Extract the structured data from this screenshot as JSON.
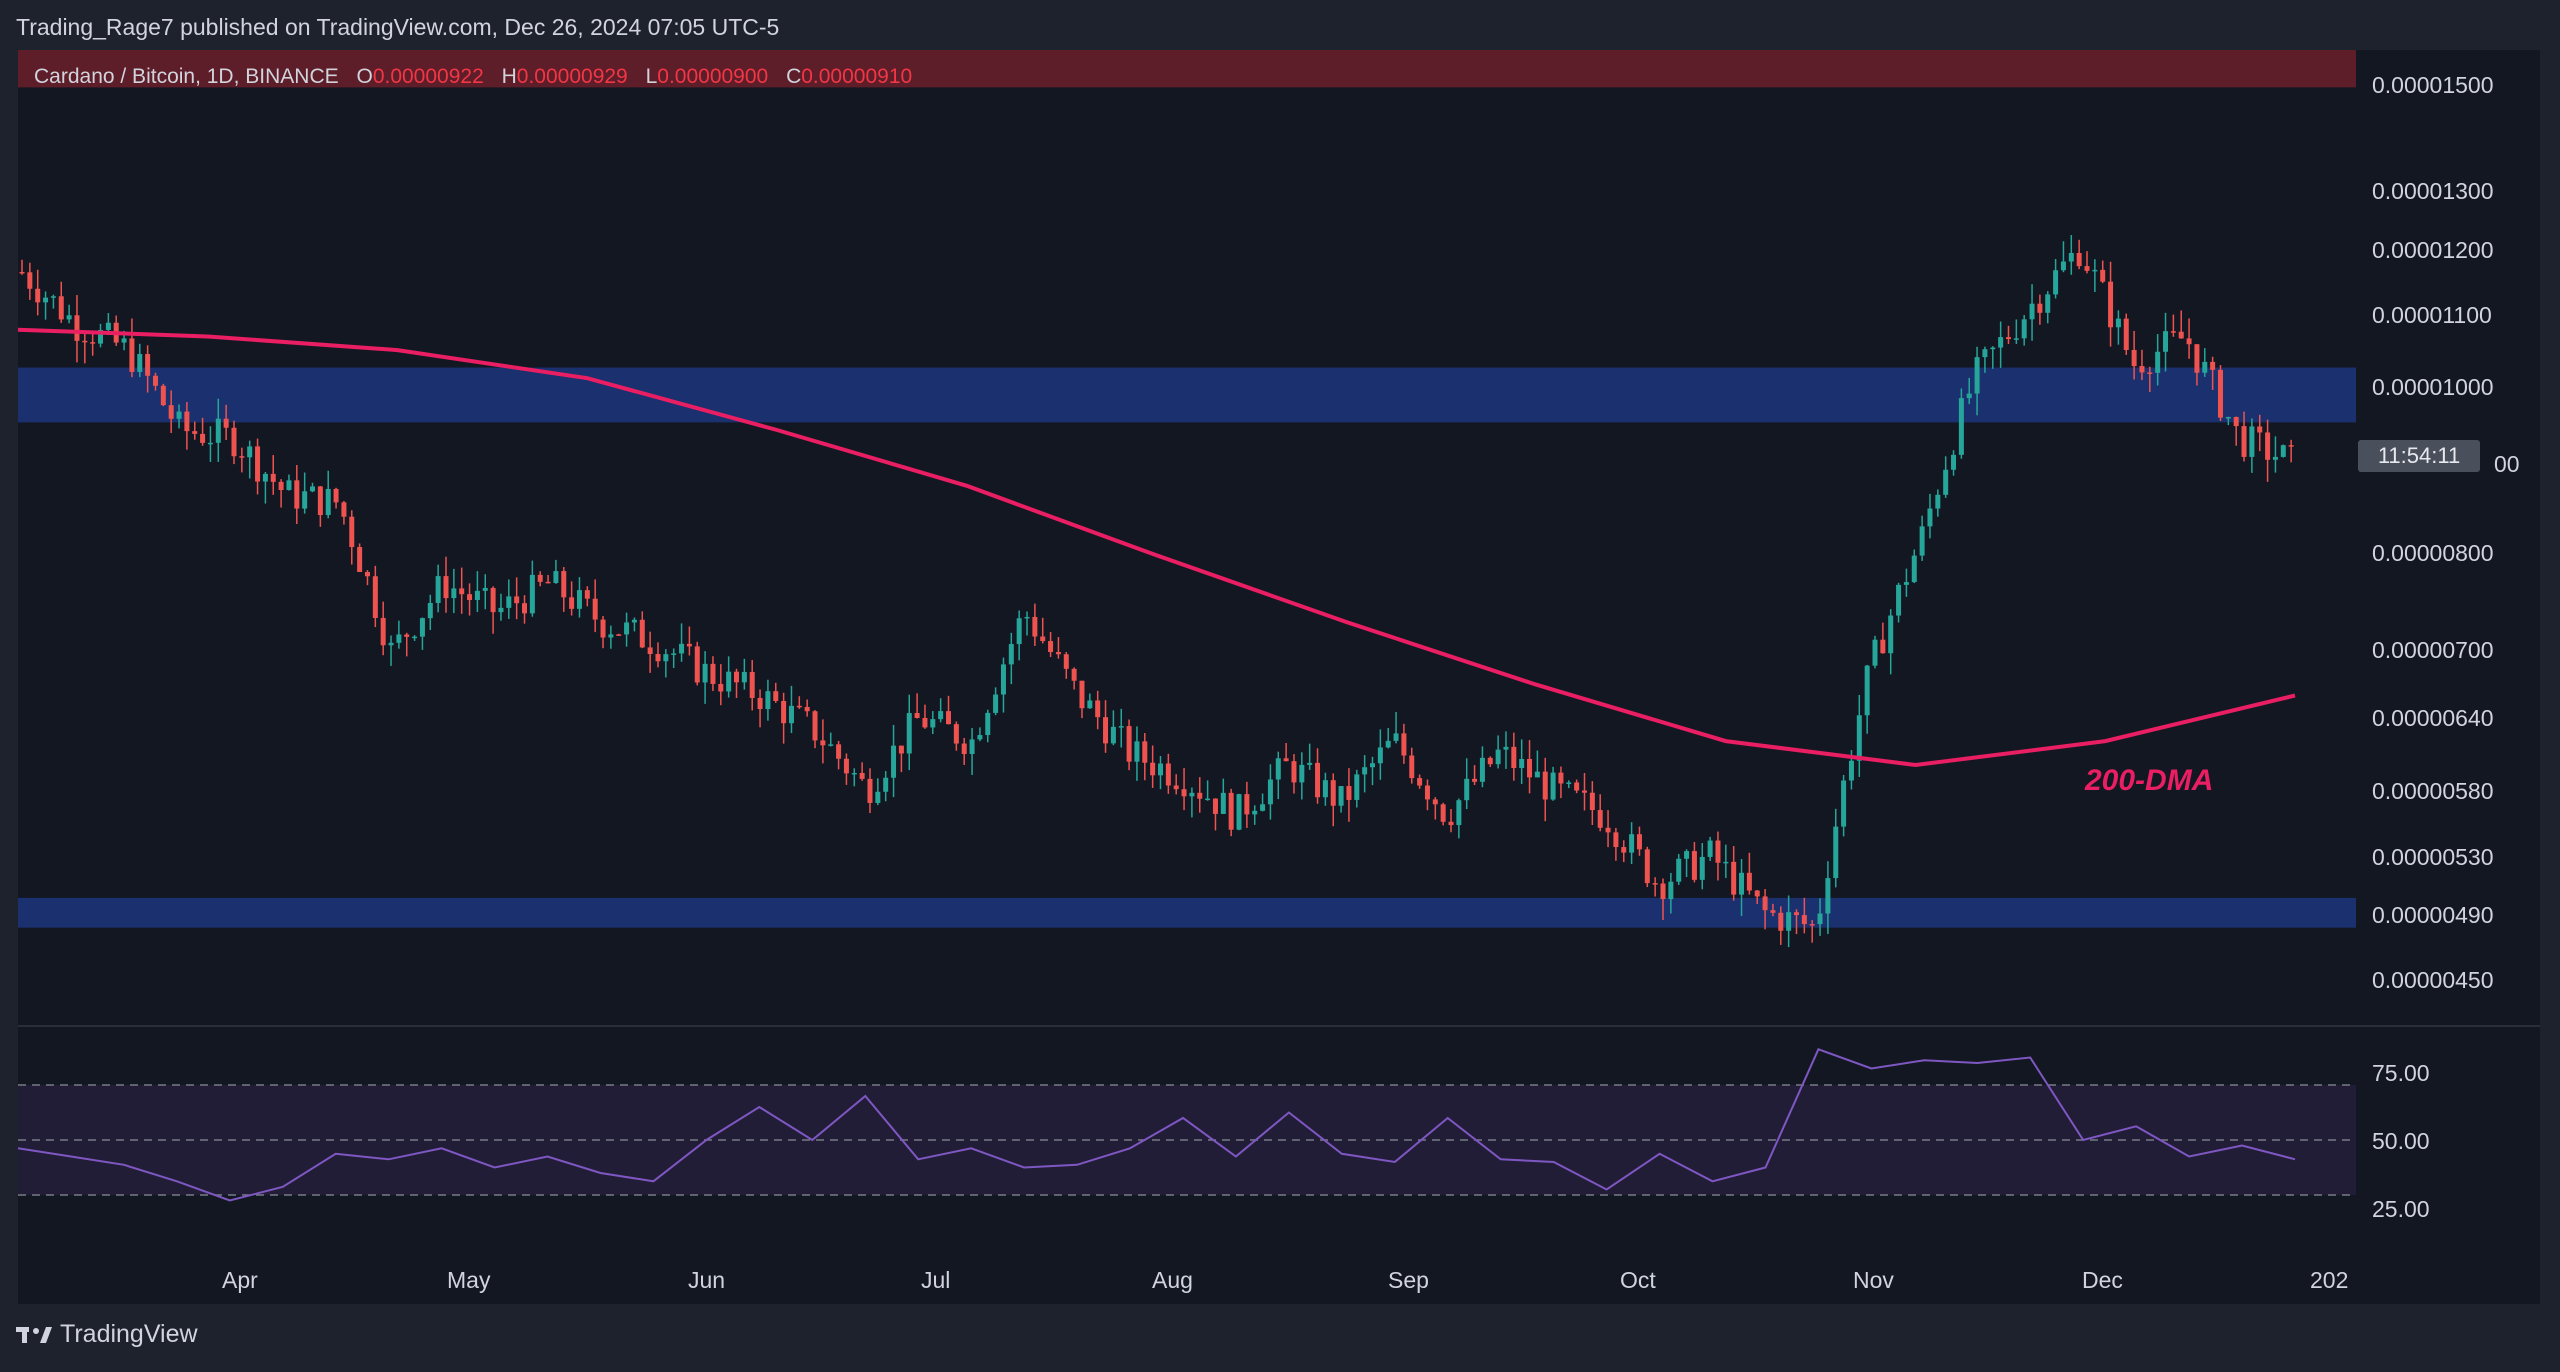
{
  "header": {
    "publish_line": "Trading_Rage7 published on TradingView.com, Dec 26, 2024 07:05 UTC-5"
  },
  "legend": {
    "symbol": "Cardano / Bitcoin, 1D, BINANCE",
    "open_label": "O",
    "open_value": "0.00000922",
    "high_label": "H",
    "high_value": "0.00000929",
    "low_label": "L",
    "low_value": "0.00000900",
    "close_label": "C",
    "close_value": "0.00000910"
  },
  "price_axis": [
    "0.00001500",
    "0.00001300",
    "0.00001200",
    "0.00001100",
    "0.00001000",
    "00",
    "0.00000800",
    "0.00000700",
    "0.00000640",
    "0.00000580",
    "0.00000530",
    "0.00000490",
    "0.00000450"
  ],
  "countdown": "11:54:11",
  "rsi_axis": [
    "75.00",
    "50.00",
    "25.00"
  ],
  "time_axis": [
    "Apr",
    "May",
    "Jun",
    "Jul",
    "Aug",
    "Sep",
    "Oct",
    "Nov",
    "Dec",
    "202"
  ],
  "annotation_ma": "200-DMA",
  "footer": {
    "brand": "TradingView"
  },
  "colors": {
    "up": "#26a69a",
    "down": "#ef5350",
    "ma": "#e91e63",
    "zone": "#1e3a8a",
    "resistance_band": "#6b1f2a",
    "rsi_line": "#7e57c2"
  },
  "chart_data": {
    "type": "candlestick",
    "price_scale": "log",
    "ylim": [
      4.2e-06,
      1.6e-05
    ],
    "support_zone": [
      4.8e-06,
      5e-06
    ],
    "resistance_zone": [
      9.6e-06,
      1.035e-05
    ],
    "top_band": [
      1.52e-05,
      1.6e-05
    ],
    "ohlc_path": [
      {
        "t": "Mar 2024",
        "close": 1.18e-05
      },
      {
        "t": "Mar 2024",
        "close": 1.1e-05
      },
      {
        "t": "Mar 2024",
        "close": 1.06e-05
      },
      {
        "t": "Mar 2024",
        "close": 9.5e-06
      },
      {
        "t": "Apr 2024",
        "close": 9.4e-06
      },
      {
        "t": "Apr 2024",
        "close": 8.7e-06
      },
      {
        "t": "Apr 2024",
        "close": 8.6e-06
      },
      {
        "t": "Apr 2024",
        "close": 7e-06
      },
      {
        "t": "Apr 2024",
        "close": 7.7e-06
      },
      {
        "t": "May 2024",
        "close": 7.4e-06
      },
      {
        "t": "May 2024",
        "close": 7.7e-06
      },
      {
        "t": "May 2024",
        "close": 7.3e-06
      },
      {
        "t": "May 2024",
        "close": 7.1e-06
      },
      {
        "t": "Jun 2024",
        "close": 6.8e-06
      },
      {
        "t": "Jun 2024",
        "close": 6.6e-06
      },
      {
        "t": "Jun 2024",
        "close": 6.3e-06
      },
      {
        "t": "Jun 2024",
        "close": 5.8e-06
      },
      {
        "t": "Jul 2024",
        "close": 6.4e-06
      },
      {
        "t": "Jul 2024",
        "close": 6.2e-06
      },
      {
        "t": "Jul 2024",
        "close": 7.4e-06
      },
      {
        "t": "Jul 2024",
        "close": 6.6e-06
      },
      {
        "t": "Aug 2024",
        "close": 6.1e-06
      },
      {
        "t": "Aug 2024",
        "close": 5.9e-06
      },
      {
        "t": "Aug 2024",
        "close": 5.6e-06
      },
      {
        "t": "Aug 2024",
        "close": 6e-06
      },
      {
        "t": "Sep 2024",
        "close": 5.7e-06
      },
      {
        "t": "Sep 2024",
        "close": 6.2e-06
      },
      {
        "t": "Sep 2024",
        "close": 5.6e-06
      },
      {
        "t": "Sep 2024",
        "close": 6.1e-06
      },
      {
        "t": "Oct 2024",
        "close": 5.8e-06
      },
      {
        "t": "Oct 2024",
        "close": 5.6e-06
      },
      {
        "t": "Oct 2024",
        "close": 5.1e-06
      },
      {
        "t": "Oct 2024",
        "close": 5.3e-06
      },
      {
        "t": "Nov 2024",
        "close": 4.9e-06
      },
      {
        "t": "Nov 2024",
        "close": 4.8e-06
      },
      {
        "t": "Nov 2024",
        "close": 6.8e-06
      },
      {
        "t": "Nov 2024",
        "close": 8.2e-06
      },
      {
        "t": "Nov 2024",
        "close": 1.02e-05
      },
      {
        "t": "Dec 2024",
        "close": 1.12e-05
      },
      {
        "t": "Dec 2024",
        "close": 1.22e-05
      },
      {
        "t": "Dec 2024",
        "close": 1.04e-05
      },
      {
        "t": "Dec 2024",
        "close": 1.08e-05
      },
      {
        "t": "Dec 2024",
        "close": 9.4e-06
      },
      {
        "t": "Dec 2024",
        "close": 9.1e-06
      }
    ],
    "ma200": [
      1.09e-05,
      1.08e-05,
      1.06e-05,
      1.02e-05,
      9.5e-06,
      8.8e-06,
      8e-06,
      7.3e-06,
      6.7e-06,
      6.2e-06,
      6e-06,
      6.2e-06,
      6.6e-06
    ],
    "rsi": {
      "levels": [
        30,
        50,
        70
      ],
      "values": [
        47,
        44,
        41,
        35,
        28,
        33,
        45,
        43,
        47,
        40,
        44,
        38,
        35,
        50,
        62,
        50,
        66,
        43,
        47,
        40,
        41,
        47,
        58,
        44,
        60,
        45,
        42,
        58,
        43,
        42,
        32,
        45,
        35,
        40,
        83,
        76,
        79,
        78,
        80,
        50,
        55,
        44,
        48,
        43
      ]
    }
  }
}
